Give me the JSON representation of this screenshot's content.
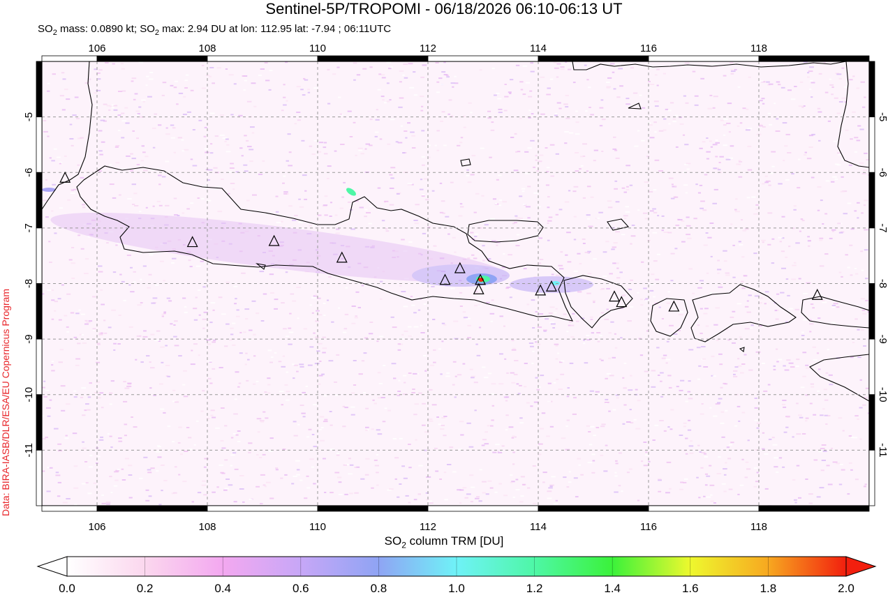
{
  "title": "Sentinel-5P/TROPOMI - 06/18/2026 06:10-06:13 UT",
  "subtitle": {
    "mass_prefix": "SO",
    "mass_sub": "2",
    "mass_text": " mass: 0.0890 kt; SO",
    "max_sub": "2",
    "max_text": " max: 2.94 DU at lon: 112.95 lat: -7.94 ; 06:11UTC"
  },
  "credit": "Data: BIRA-IASB/DLR/ESA/EU Copernicus Program",
  "map": {
    "lon_range": [
      105,
      120
    ],
    "lat_range": [
      -12,
      -4
    ],
    "lon_ticks": [
      "106",
      "108",
      "110",
      "112",
      "114",
      "116",
      "118"
    ],
    "lat_ticks": [
      "-5",
      "-6",
      "-7",
      "-8",
      "-9",
      "-10",
      "-11"
    ],
    "grid": true,
    "volcano_icon": "triangle-volcano-icon",
    "volcanoes": [
      {
        "lon": 105.42,
        "lat": -6.1
      },
      {
        "lon": 107.73,
        "lat": -7.26
      },
      {
        "lon": 109.21,
        "lat": -7.24
      },
      {
        "lon": 110.44,
        "lat": -7.54
      },
      {
        "lon": 112.31,
        "lat": -7.94
      },
      {
        "lon": 112.58,
        "lat": -7.73
      },
      {
        "lon": 112.95,
        "lat": -7.94
      },
      {
        "lon": 112.92,
        "lat": -8.11
      },
      {
        "lon": 114.04,
        "lat": -8.13
      },
      {
        "lon": 114.24,
        "lat": -8.06
      },
      {
        "lon": 115.38,
        "lat": -8.24
      },
      {
        "lon": 115.51,
        "lat": -8.34
      },
      {
        "lon": 116.46,
        "lat": -8.42
      },
      {
        "lon": 119.06,
        "lat": -8.21
      }
    ]
  },
  "colorbar": {
    "label_prefix": "SO",
    "label_sub": "2",
    "label_suffix": " column TRM [DU]",
    "ticks": [
      "0.0",
      "0.2",
      "0.4",
      "0.6",
      "0.8",
      "1.0",
      "1.2",
      "1.4",
      "1.6",
      "1.8",
      "2.0"
    ],
    "colors": [
      "#ffffff",
      "#fbd7ee",
      "#f3a8f0",
      "#c7a7f7",
      "#8fa4f4",
      "#6ff2f7",
      "#4ef7a6",
      "#3bf23a",
      "#eef82e",
      "#f7a820",
      "#f21f0e"
    ]
  }
}
